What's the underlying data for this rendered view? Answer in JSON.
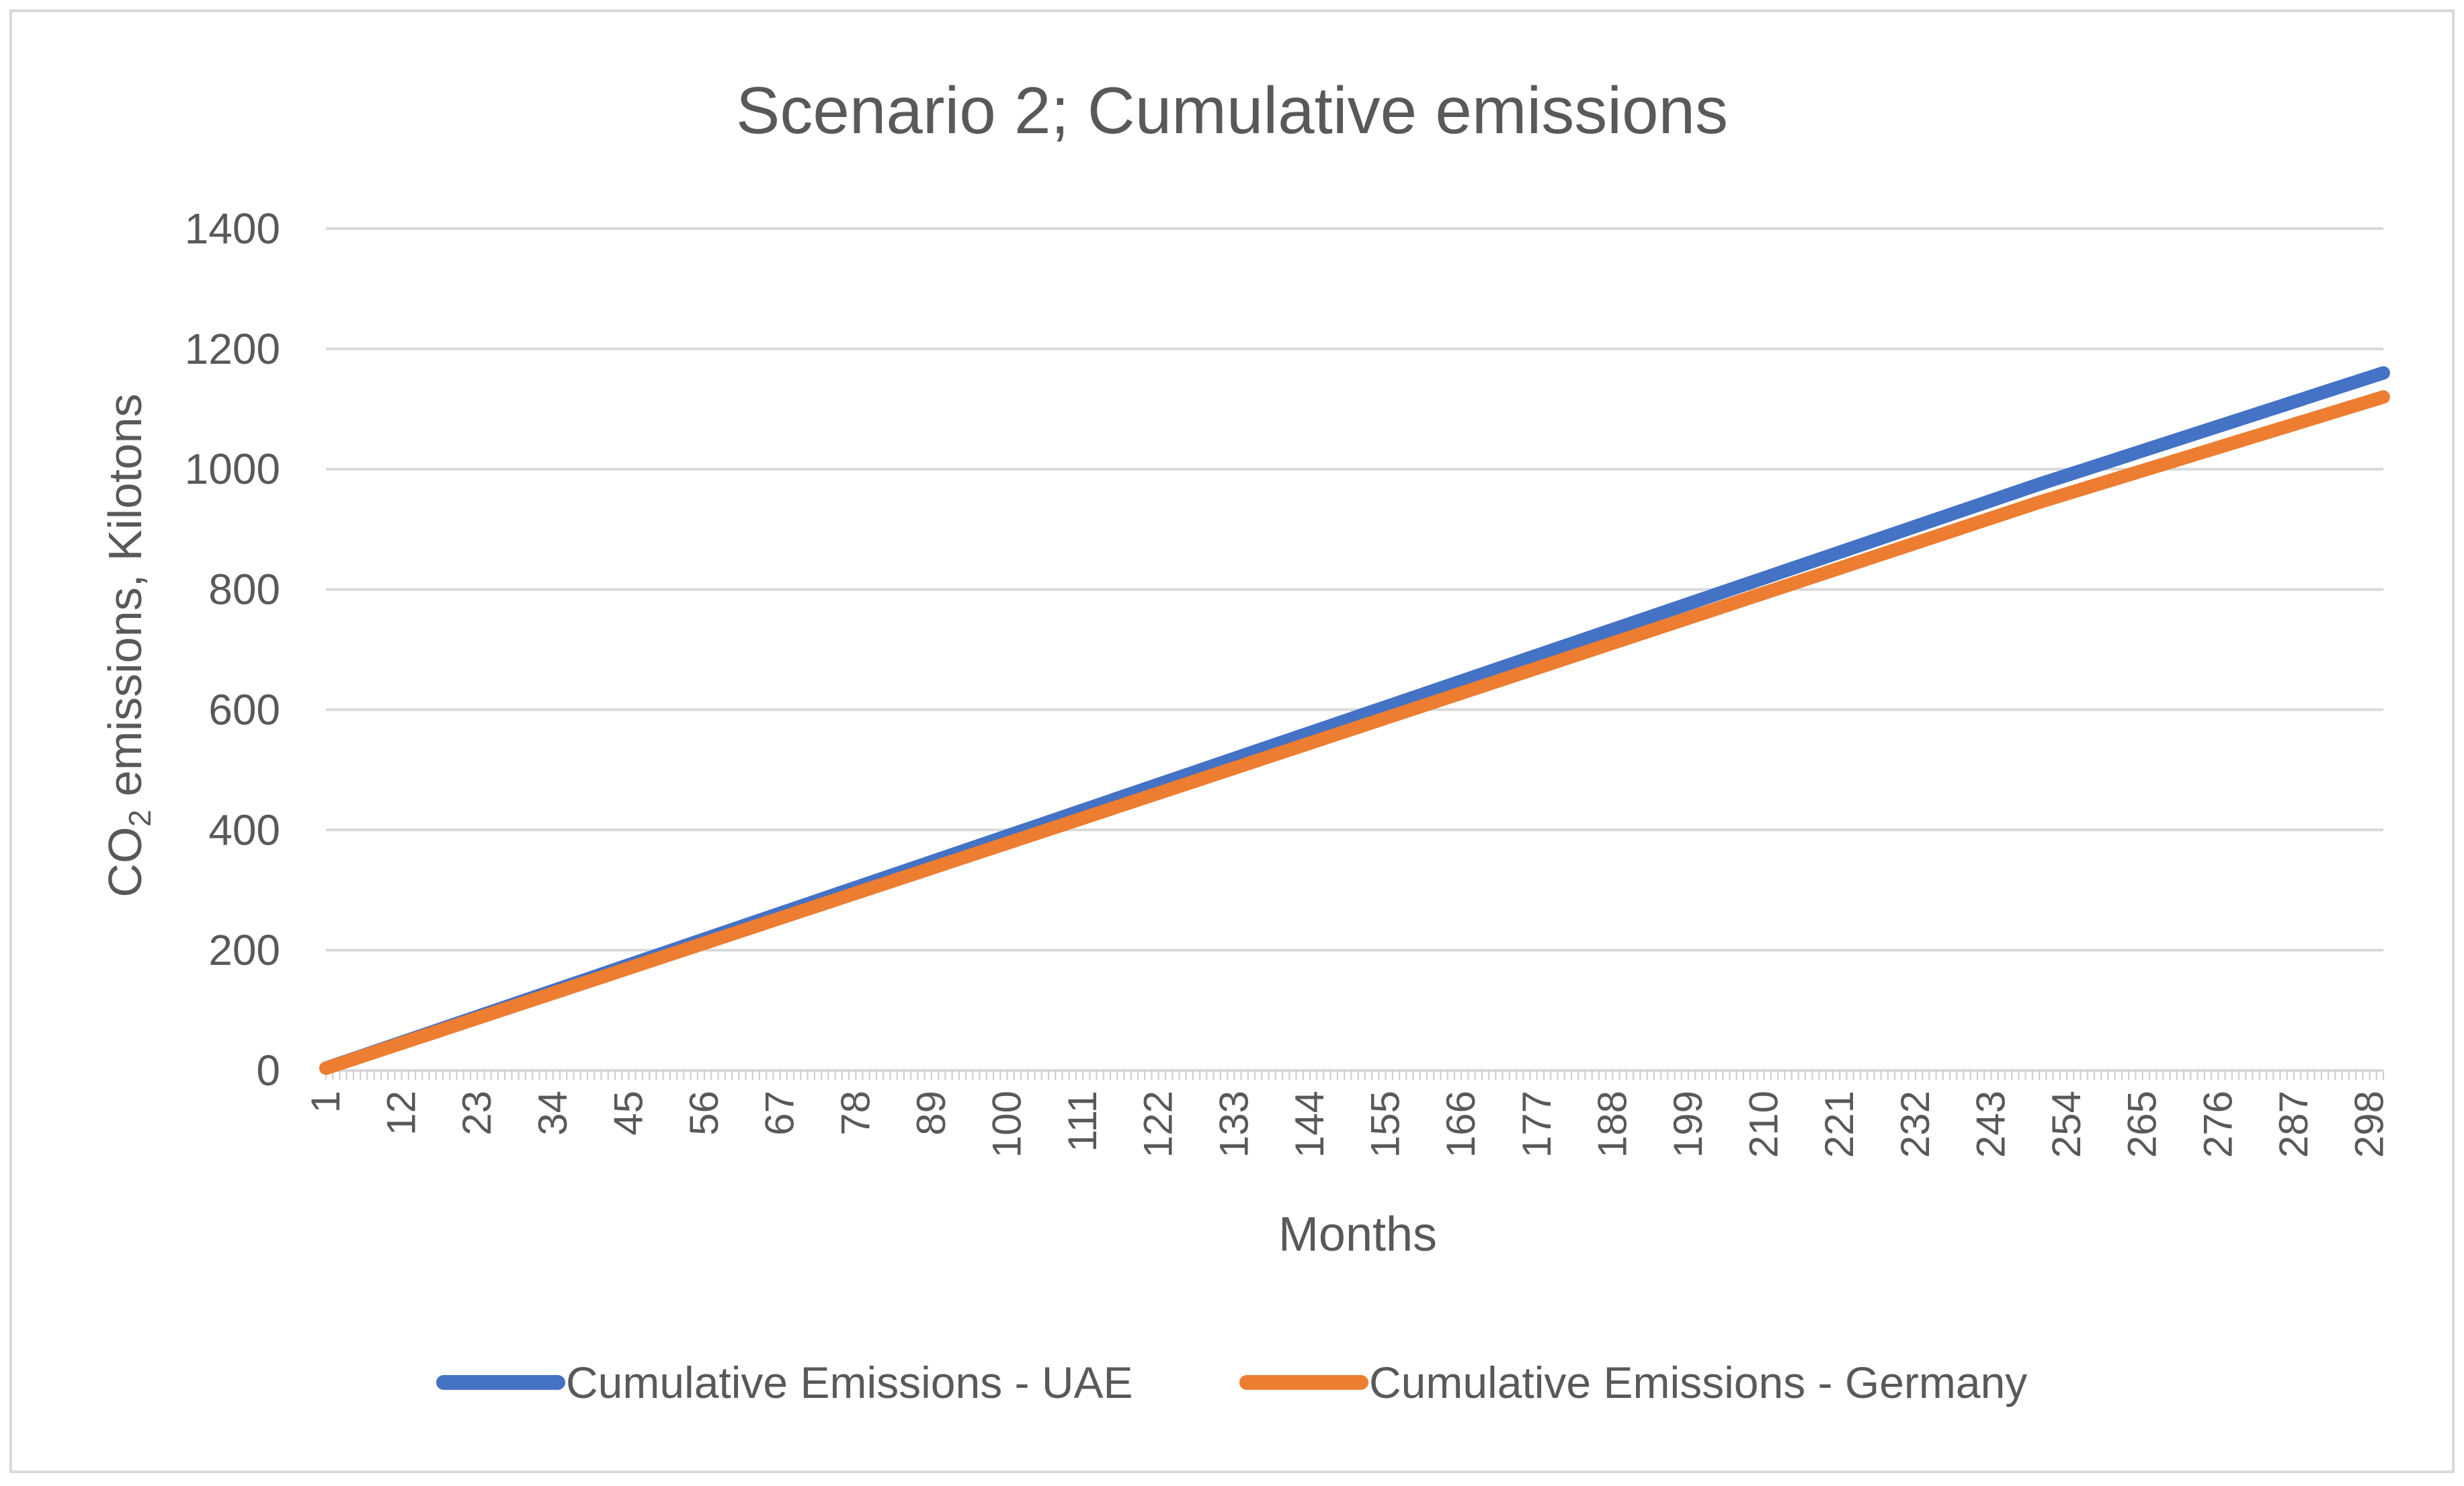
{
  "chart_data": {
    "type": "line",
    "title": "Scenario 2; Cumulative emissions",
    "xlabel": "Months",
    "ylabel": {
      "prefix": "CO",
      "subscript": "2",
      "suffix": " emissions, Kilotons"
    },
    "x_range": [
      1,
      300
    ],
    "x_ticks": [
      "1",
      "12",
      "23",
      "34",
      "45",
      "56",
      "67",
      "78",
      "89",
      "100",
      "111",
      "122",
      "133",
      "144",
      "155",
      "166",
      "177",
      "188",
      "199",
      "210",
      "221",
      "232",
      "243",
      "254",
      "265",
      "276",
      "287",
      "298"
    ],
    "ylim": [
      0,
      1400
    ],
    "y_ticks": [
      "0",
      "200",
      "400",
      "600",
      "800",
      "1000",
      "1200",
      "1400"
    ],
    "grid": true,
    "legend_position": "bottom",
    "series": [
      {
        "name": "Cumulative Emissions - UAE",
        "color": "#4472C4",
        "x": [
          1,
          100,
          150,
          200,
          250,
          300
        ],
        "values": [
          3.9,
          390,
          585,
          780,
          975,
          1160
        ]
      },
      {
        "name": "Cumulative Emissions - Germany",
        "color": "#ED7D31",
        "x": [
          1,
          100,
          150,
          200,
          250,
          300
        ],
        "values": [
          3.7,
          378,
          567,
          756,
          945,
          1120
        ]
      }
    ]
  }
}
